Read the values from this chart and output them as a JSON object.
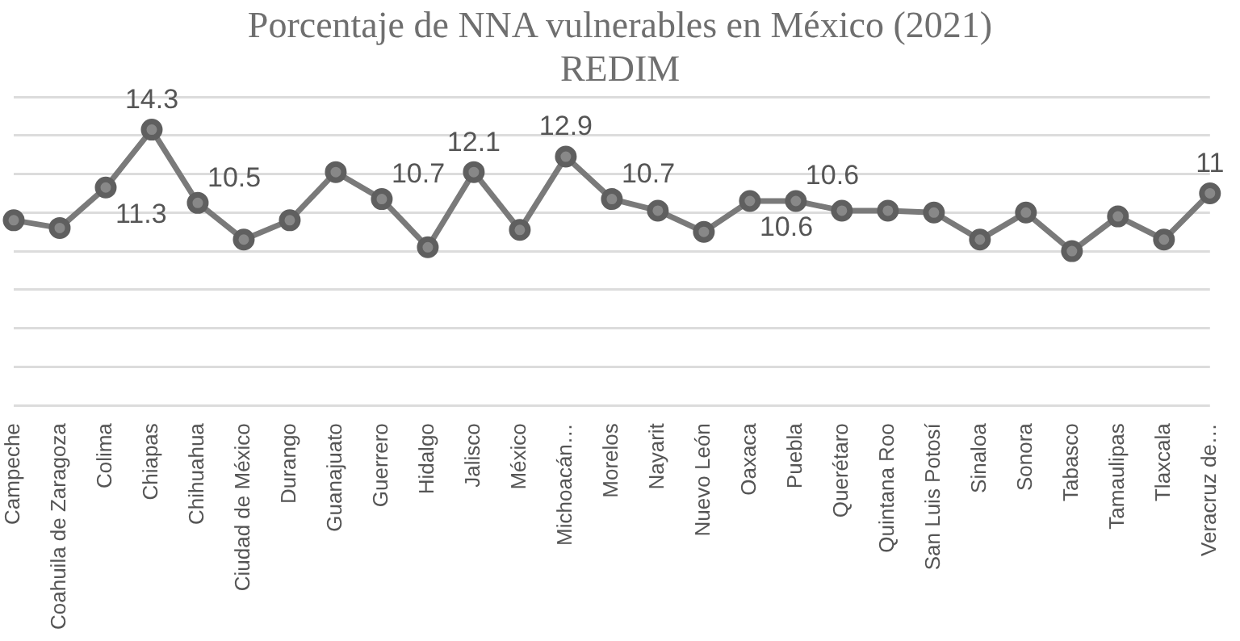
{
  "chart_data": {
    "type": "line",
    "title": "Porcentaje de NNA vulnerables en México (2021)",
    "subtitle": "REDIM",
    "categories": [
      "Campeche",
      "Coahuila de Zaragoza",
      "Colima",
      "Chiapas",
      "Chihuahua",
      "Ciudad de México",
      "Durango",
      "Guanajuato",
      "Guerrero",
      "Hidalgo",
      "Jalisco",
      "México",
      "Michoacán…",
      "Morelos",
      "Nayarit",
      "Nuevo León",
      "Oaxaca",
      "Puebla",
      "Querétaro",
      "Quintana Roo",
      "San Luis Potosí",
      "Sinaloa",
      "Sonora",
      "Tabasco",
      "Tamaulipas",
      "Tlaxcala",
      "Veracruz de…"
    ],
    "series": [
      {
        "color": "#7a7a7a",
        "values": [
          9.6,
          9.2,
          11.3,
          14.3,
          10.5,
          8.6,
          9.6,
          12.1,
          10.7,
          8.2,
          12.1,
          9.1,
          12.9,
          10.7,
          10.1,
          9.0,
          10.6,
          10.6,
          10.1,
          10.1,
          10.0,
          8.6,
          10.0,
          8.0,
          9.8,
          8.6,
          11
        ],
        "value_labels": [
          null,
          null,
          "11.3",
          "14.3",
          "10.5",
          null,
          null,
          null,
          "10.7",
          null,
          "12.1",
          null,
          "12.9",
          "10.7",
          null,
          null,
          "10.6",
          "10.6",
          null,
          null,
          null,
          null,
          null,
          null,
          null,
          null,
          "11"
        ]
      }
    ],
    "ylim": [
      0,
      16
    ],
    "yticks": [
      {
        "value": 0,
        "label": null
      },
      {
        "value": 2,
        "label": null
      },
      {
        "value": 4,
        "label": null
      },
      {
        "value": 6,
        "label": null
      },
      {
        "value": 8,
        "label": null
      },
      {
        "value": 10,
        "label": null
      },
      {
        "value": 12,
        "label": null
      },
      {
        "value": 14,
        "label": null
      },
      {
        "value": 16,
        "label": null
      }
    ],
    "tick_labels": "x",
    "grid": "y",
    "legend": false,
    "marker": "circle",
    "line_style": "solid"
  }
}
